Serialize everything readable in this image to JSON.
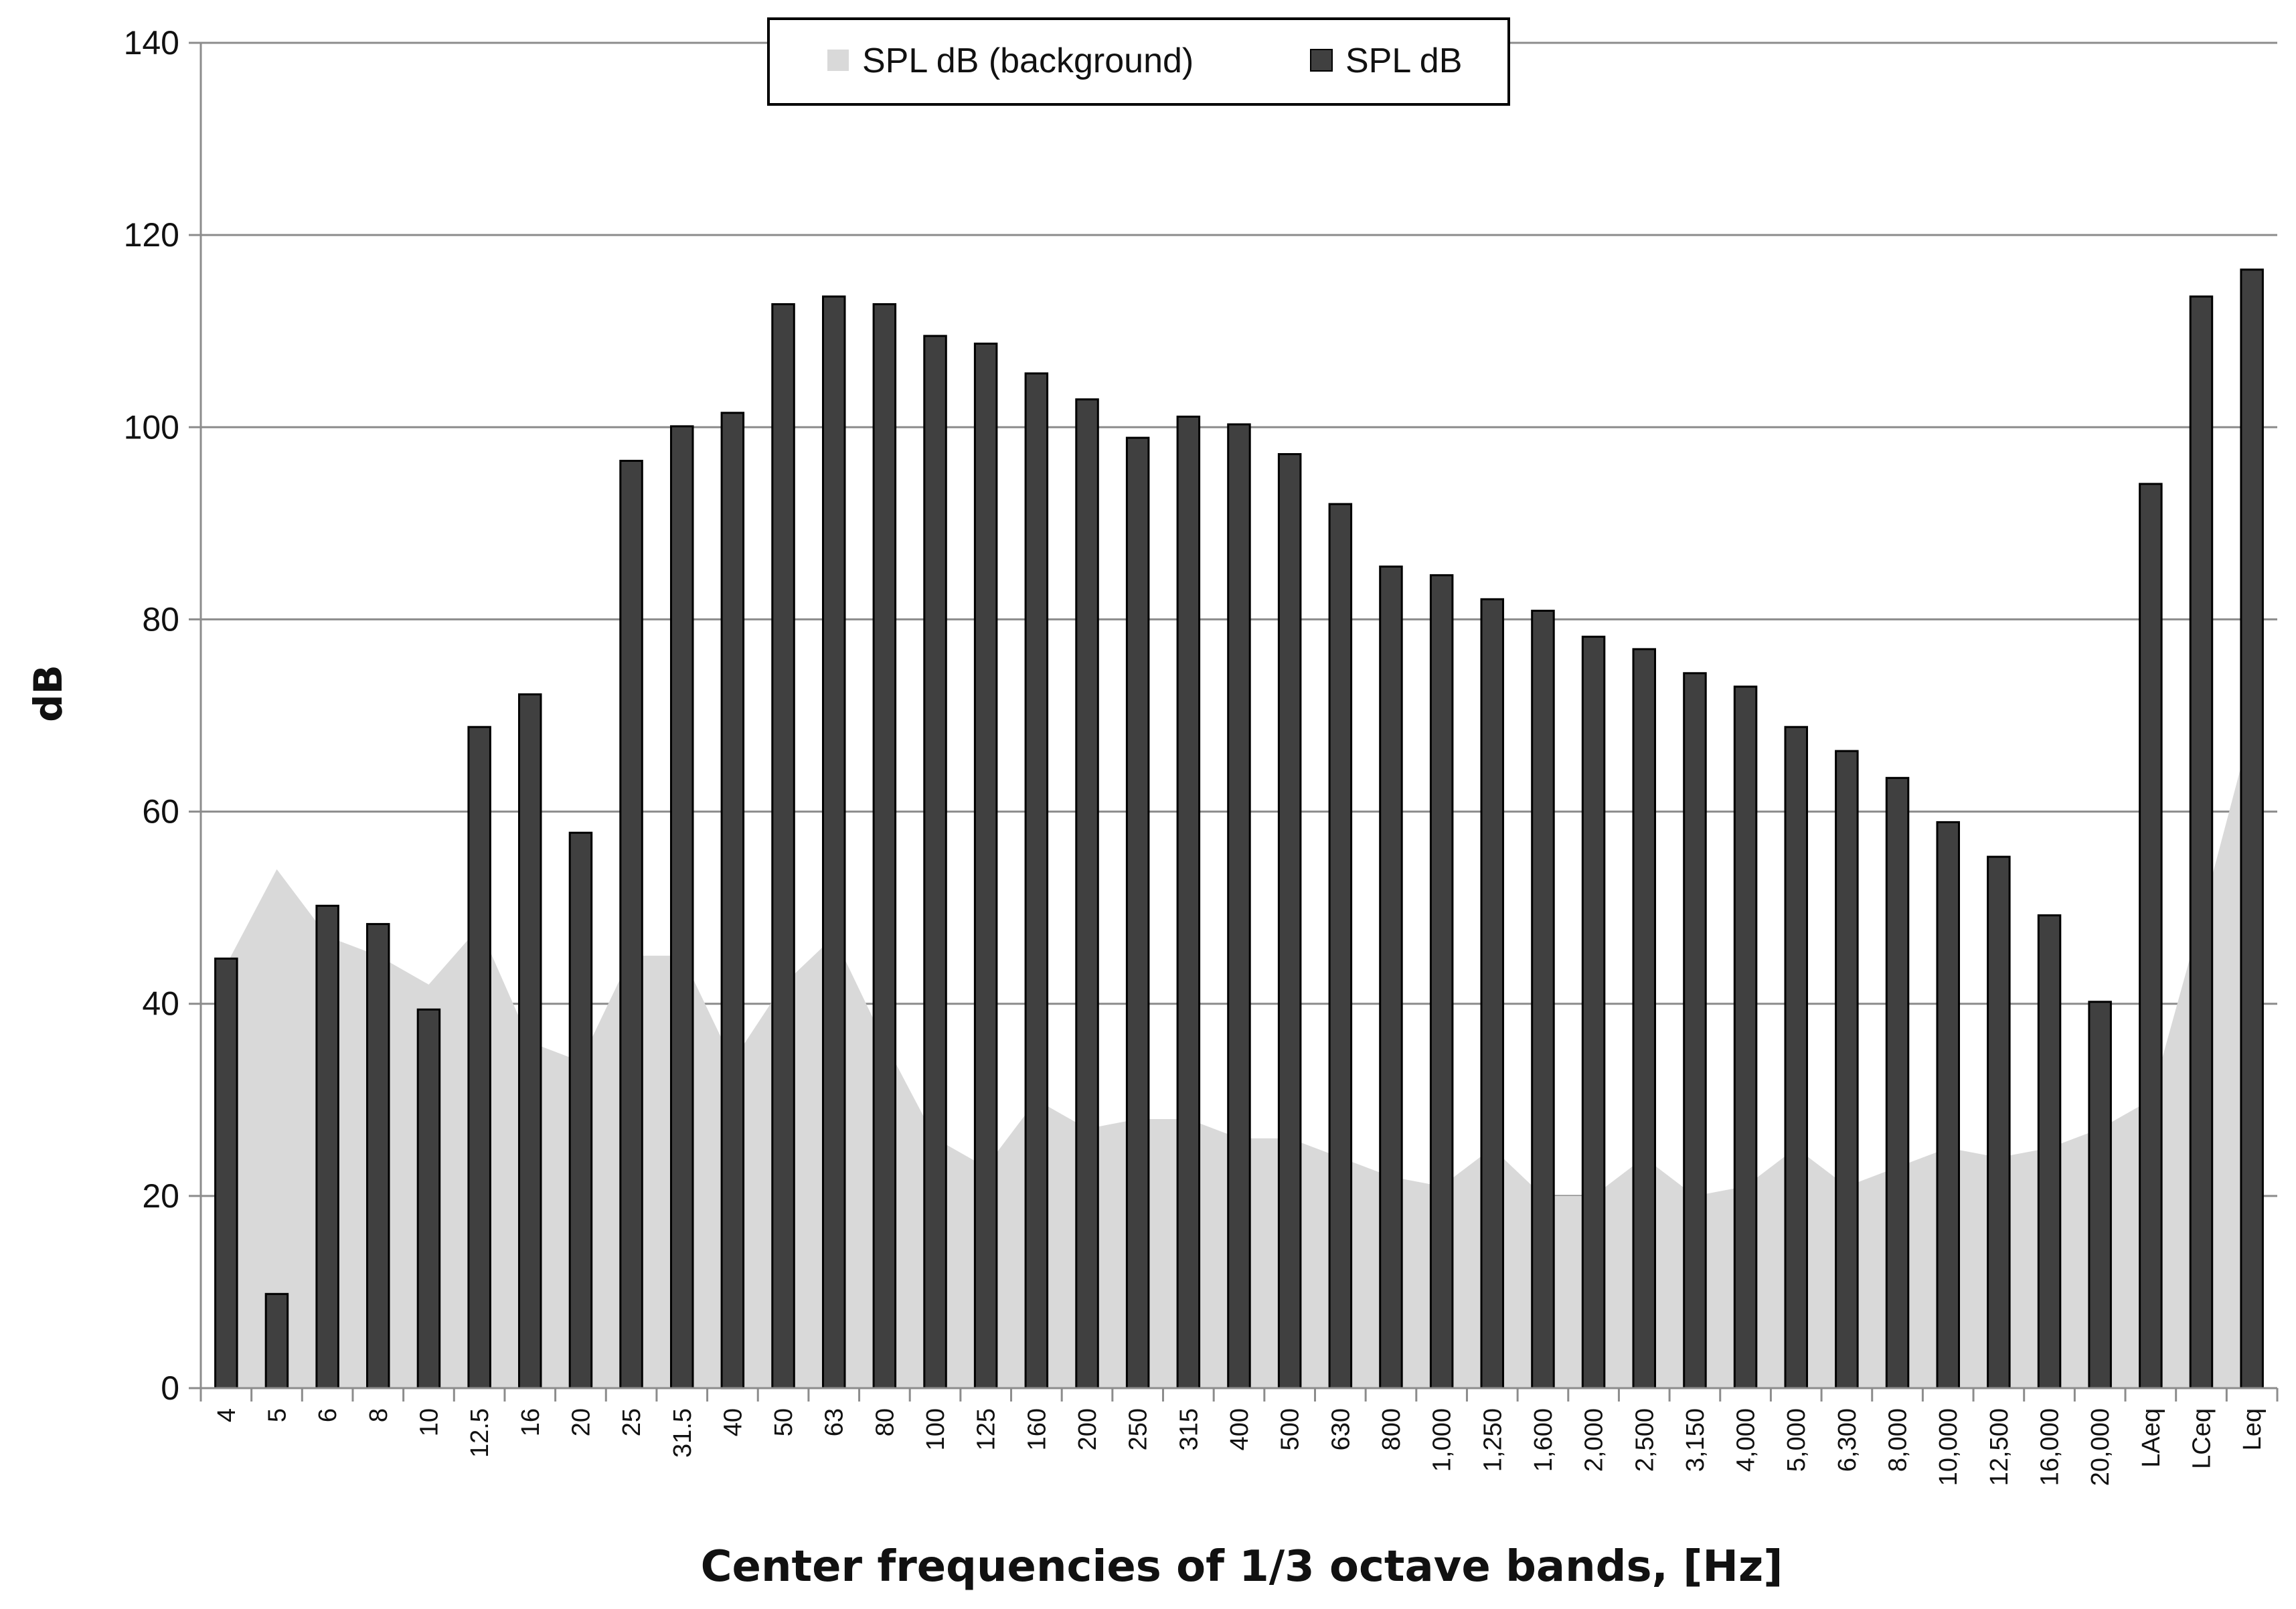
{
  "chart_data": {
    "type": "bar",
    "xlabel": "Center frequencies of 1/3 octave bands, [Hz]",
    "ylabel": "dB",
    "ylim": [
      0,
      140
    ],
    "yticks": [
      0,
      20,
      40,
      60,
      80,
      100,
      120,
      140
    ],
    "grid": true,
    "legend_position": "top-center",
    "categories": [
      "4",
      "5",
      "6",
      "8",
      "10",
      "12.5",
      "16",
      "20",
      "25",
      "31.5",
      "40",
      "50",
      "63",
      "80",
      "100",
      "125",
      "160",
      "200",
      "250",
      "315",
      "400",
      "500",
      "630",
      "800",
      "1,000",
      "1,250",
      "1,600",
      "2,000",
      "2,500",
      "3,150",
      "4,000",
      "5,000",
      "6,300",
      "8,000",
      "10,000",
      "12,500",
      "16,000",
      "20,000",
      "LAeq",
      "LCeq",
      "Leq"
    ],
    "series": [
      {
        "name": "SPL dB (background)",
        "kind": "area",
        "color": "#d9d9d9",
        "values": [
          44,
          54,
          47,
          45,
          42,
          48,
          36,
          34,
          45,
          45,
          34,
          42,
          47,
          36,
          26,
          23,
          30,
          27,
          28,
          28,
          26,
          26,
          24,
          22,
          21,
          25,
          20,
          20,
          24,
          20,
          21,
          25,
          21,
          23,
          25,
          24,
          25,
          27,
          30,
          49,
          69
        ]
      },
      {
        "name": "SPL dB",
        "kind": "bar",
        "color": "#404040",
        "values": [
          44.7,
          9.8,
          50.2,
          48.3,
          39.4,
          68.8,
          72.2,
          57.8,
          96.5,
          100.1,
          101.5,
          112.8,
          113.6,
          112.8,
          109.5,
          108.7,
          105.6,
          102.9,
          98.9,
          101.1,
          100.3,
          97.2,
          92.0,
          85.5,
          84.6,
          82.1,
          80.9,
          78.2,
          76.9,
          74.4,
          73.0,
          68.8,
          66.3,
          63.5,
          58.9,
          55.3,
          49.2,
          40.2,
          94.1,
          113.6,
          116.4
        ]
      }
    ]
  }
}
